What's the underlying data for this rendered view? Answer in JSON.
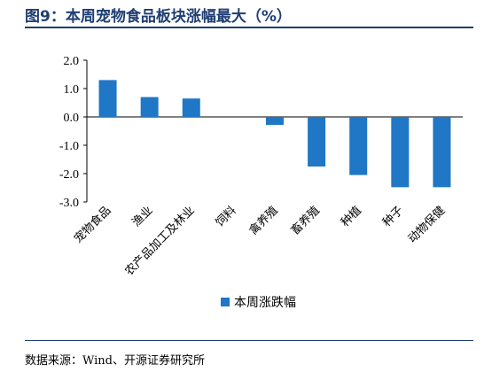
{
  "header": {
    "title": "图9：本周宠物食品板块涨幅最大（%）"
  },
  "footer": {
    "source": "数据来源：Wind、开源证券研究所"
  },
  "colors": {
    "bar": "#1f77c6",
    "title": "#1f3e73"
  },
  "chart_data": {
    "type": "bar",
    "title": "本周宠物食品板块涨幅最大（%）",
    "categories": [
      "宠物食品",
      "渔业",
      "农产品加工及林业",
      "饲料",
      "禽养殖",
      "畜养殖",
      "种植",
      "种子",
      "动物保健"
    ],
    "series": [
      {
        "name": "本周涨跌幅",
        "values": [
          1.3,
          0.7,
          0.65,
          0.0,
          -0.28,
          -1.75,
          -2.05,
          -2.48,
          -2.48
        ]
      }
    ],
    "ylim": [
      -3.0,
      2.0
    ],
    "yticks": [
      "2.0",
      "1.0",
      "0.0",
      "-1.0",
      "-2.0",
      "-3.0"
    ],
    "ytick_values": [
      2,
      1,
      0,
      -1,
      -2,
      -3
    ],
    "grid": false,
    "legend_position": "bottom"
  }
}
